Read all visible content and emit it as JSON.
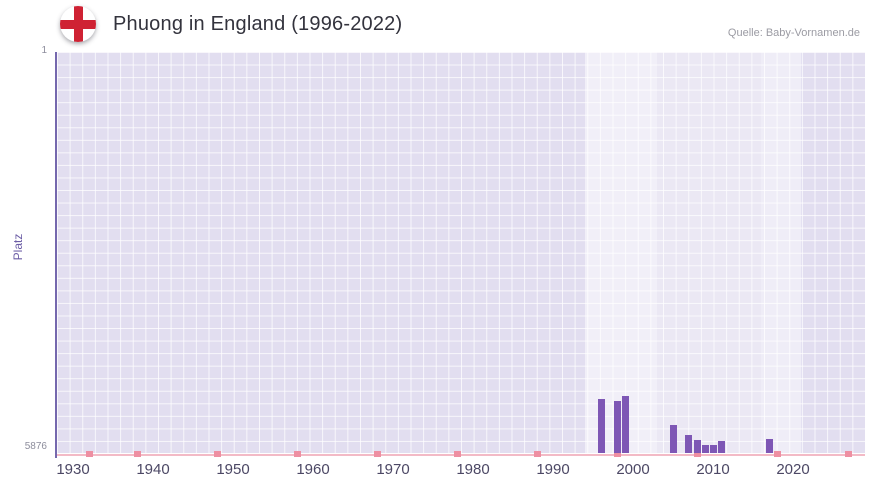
{
  "header": {
    "title": "Phuong in England (1996-2022)",
    "source_credit": "Quelle: Baby-Vornamen.de",
    "flag_icon": "england-flag-icon"
  },
  "chart_data": {
    "type": "bar",
    "title": "Phuong in England (1996-2022)",
    "xlabel": "",
    "ylabel": "Platz",
    "grid": true,
    "legend_position": "none",
    "y_axis": {
      "min": 1,
      "max": 5876,
      "inverted": true,
      "top_label": "1",
      "bottom_label": "5876"
    },
    "x_axis": {
      "min": 1928,
      "max": 2029,
      "ticks": [
        1930,
        1940,
        1950,
        1960,
        1970,
        1980,
        1990,
        2000,
        2010,
        2020
      ]
    },
    "series": [
      {
        "name": "Platz",
        "color": "#7e57b5",
        "points": [
          {
            "year": 1996,
            "rank": 5085
          },
          {
            "year": 1998,
            "rank": 5120
          },
          {
            "year": 1999,
            "rank": 5040
          },
          {
            "year": 2005,
            "rank": 5460
          },
          {
            "year": 2007,
            "rank": 5615
          },
          {
            "year": 2008,
            "rank": 5685
          },
          {
            "year": 2009,
            "rank": 5755
          },
          {
            "year": 2010,
            "rank": 5760
          },
          {
            "year": 2011,
            "rank": 5700
          },
          {
            "year": 2017,
            "rank": 5665
          }
        ]
      }
    ],
    "highlight_bands": [
      {
        "from": 1994,
        "to": 2003,
        "alpha": 0.5
      },
      {
        "from": 2003,
        "to": 2016,
        "alpha": 0.3
      },
      {
        "from": 2016,
        "to": 2021,
        "alpha": 0.45
      }
    ],
    "minor_marks_years": [
      1932,
      1938,
      1948,
      1958,
      1968,
      1978,
      1988,
      1998,
      2008,
      2018,
      2027
    ]
  },
  "colors": {
    "plot_background": "#e2def0",
    "grid_line": "#ffffff",
    "bar": "#7e57b5",
    "y_axis_line": "#7568ae",
    "x_axis_line": "#f3bac6",
    "minor_mark": "#ee8fa2",
    "tick_text": "#4c4865",
    "title_text": "#33333d",
    "source_text": "#9b9ba3",
    "flag_red": "#cf2233"
  }
}
